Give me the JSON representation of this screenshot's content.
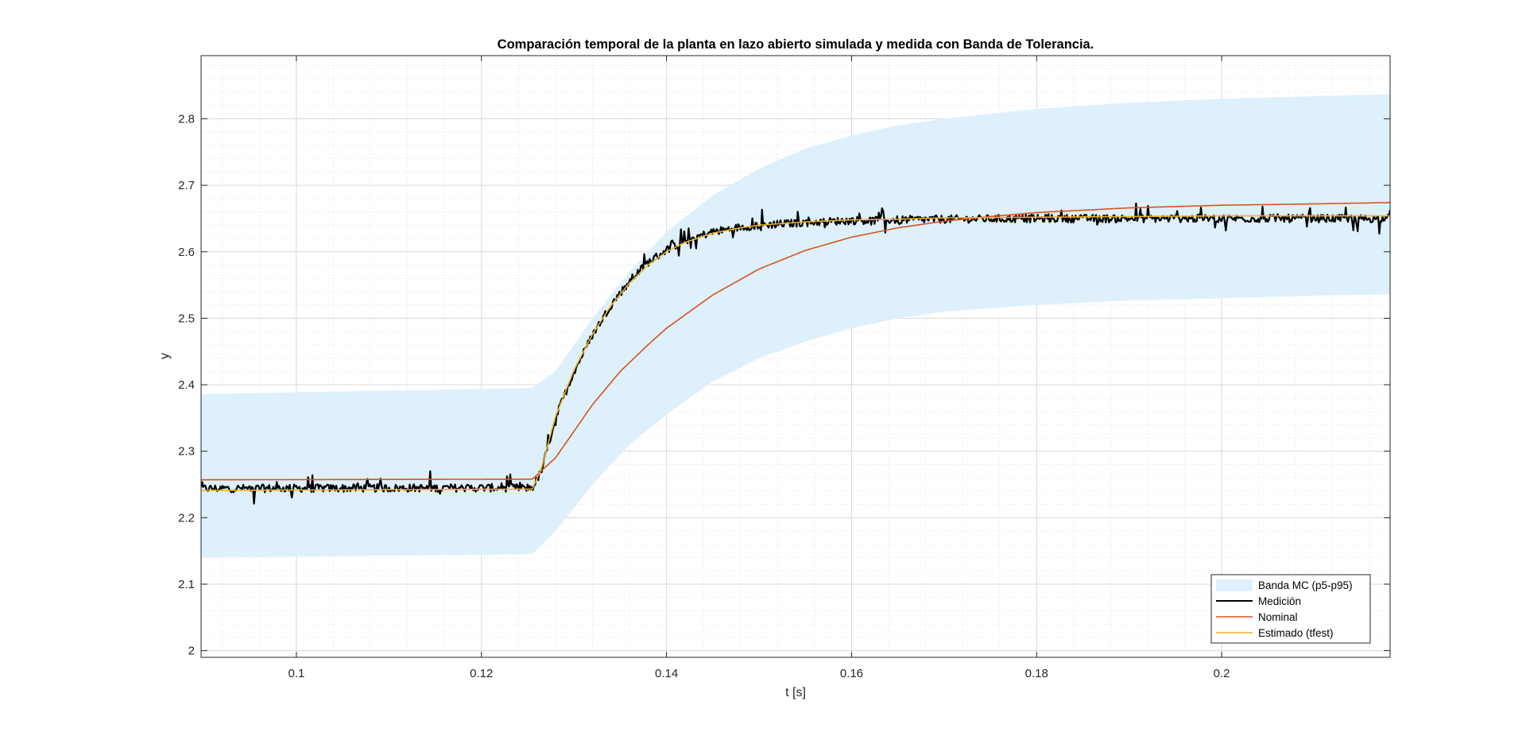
{
  "chart_data": {
    "type": "line",
    "title": "Comparación temporal de la planta en lazo abierto simulada y medida con Banda de Tolerancia.",
    "xlabel": "t [s]",
    "ylabel": "y",
    "xlim": [
      0.0897,
      0.2182
    ],
    "ylim": [
      1.99,
      2.895
    ],
    "xticks": [
      0.1,
      0.12,
      0.14,
      0.16,
      0.18,
      0.2
    ],
    "xtick_labels": [
      "0.1",
      "0.12",
      "0.14",
      "0.16",
      "0.18",
      "0.2"
    ],
    "yticks": [
      2,
      2.1,
      2.2,
      2.3,
      2.4,
      2.5,
      2.6,
      2.7,
      2.8
    ],
    "ytick_labels": [
      "2",
      "2.1",
      "2.2",
      "2.3",
      "2.4",
      "2.5",
      "2.6",
      "2.7",
      "2.8"
    ],
    "grid": true,
    "minor_grid": true,
    "legend_position": "bottom-right",
    "step_time": 0.1255,
    "band": {
      "name": "Banda MC (p5-p95)",
      "color": "#ddf0fc",
      "x": [
        0.0897,
        0.1255,
        0.128,
        0.132,
        0.136,
        0.14,
        0.145,
        0.15,
        0.155,
        0.16,
        0.165,
        0.17,
        0.18,
        0.19,
        0.2,
        0.21,
        0.2182
      ],
      "upper": [
        2.386,
        2.395,
        2.42,
        2.5,
        2.57,
        2.63,
        2.685,
        2.725,
        2.755,
        2.775,
        2.79,
        2.8,
        2.815,
        2.824,
        2.83,
        2.834,
        2.837
      ],
      "lower": [
        2.14,
        2.145,
        2.18,
        2.25,
        2.31,
        2.355,
        2.405,
        2.44,
        2.465,
        2.485,
        2.5,
        2.51,
        2.52,
        2.527,
        2.53,
        2.534,
        2.536
      ]
    },
    "series": [
      {
        "name": "Medición",
        "color": "#000000",
        "x": [
          0.0897,
          0.1255,
          0.1265,
          0.128,
          0.13,
          0.132,
          0.134,
          0.136,
          0.138,
          0.14,
          0.142,
          0.145,
          0.148,
          0.15,
          0.155,
          0.16,
          0.165,
          0.17,
          0.18,
          0.19,
          0.2,
          0.21,
          0.2182
        ],
        "y": [
          2.244,
          2.245,
          2.27,
          2.35,
          2.42,
          2.475,
          2.52,
          2.556,
          2.584,
          2.603,
          2.617,
          2.63,
          2.637,
          2.64,
          2.644,
          2.647,
          2.648,
          2.649,
          2.65,
          2.65,
          2.65,
          2.65,
          2.65
        ],
        "noise_amplitude": 0.012,
        "spike_amplitude": 0.022
      },
      {
        "name": "Nominal",
        "color": "#d95319",
        "x": [
          0.0897,
          0.1255,
          0.128,
          0.13,
          0.132,
          0.135,
          0.138,
          0.14,
          0.145,
          0.15,
          0.155,
          0.16,
          0.165,
          0.17,
          0.175,
          0.18,
          0.19,
          0.2,
          0.21,
          0.2182
        ],
        "y": [
          2.257,
          2.258,
          2.29,
          2.33,
          2.37,
          2.42,
          2.46,
          2.485,
          2.535,
          2.574,
          2.602,
          2.622,
          2.636,
          2.646,
          2.653,
          2.659,
          2.666,
          2.67,
          2.672,
          2.674
        ]
      },
      {
        "name": "Estimado (tfest)",
        "color": "#edb120",
        "x": [
          0.0897,
          0.1255,
          0.1265,
          0.128,
          0.13,
          0.132,
          0.134,
          0.136,
          0.138,
          0.14,
          0.142,
          0.145,
          0.148,
          0.15,
          0.155,
          0.16,
          0.165,
          0.17,
          0.18,
          0.19,
          0.2,
          0.21,
          0.2182
        ],
        "y": [
          2.241,
          2.243,
          2.275,
          2.352,
          2.422,
          2.476,
          2.519,
          2.553,
          2.58,
          2.6,
          2.614,
          2.628,
          2.636,
          2.64,
          2.645,
          2.648,
          2.649,
          2.651,
          2.652,
          2.653,
          2.654,
          2.654,
          2.654
        ]
      }
    ]
  }
}
